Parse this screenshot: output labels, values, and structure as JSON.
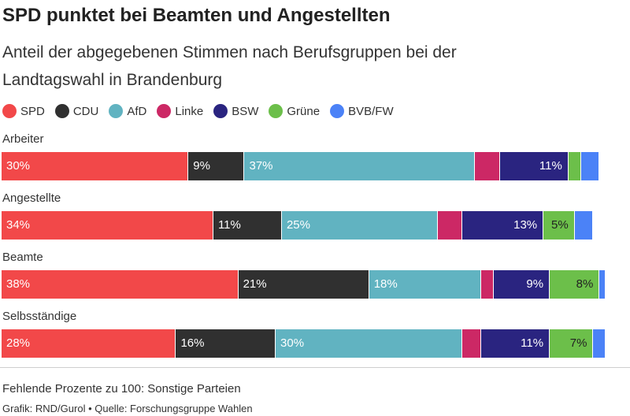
{
  "header": {
    "title": "SPD punktet bei Beamten und Angestellten",
    "subtitle": "Anteil der abgegebenen Stimmen nach Berufsgruppen bei der Landtagswahl in Brandenburg"
  },
  "colors": {
    "SPD": "#f24849",
    "CDU": "#303030",
    "AfD": "#61b3c1",
    "Linke": "#cc2865",
    "BSW": "#2a2480",
    "Grüne": "#6cbf4a",
    "BVB/FW": "#4b82f7"
  },
  "chart_data": {
    "type": "bar",
    "orientation": "horizontal",
    "stacked": true,
    "xlim": [
      0,
      100
    ],
    "legend_position": "top-left",
    "series_names": [
      "SPD",
      "CDU",
      "AfD",
      "Linke",
      "BSW",
      "Grüne",
      "BVB/FW"
    ],
    "categories": [
      "Arbeiter",
      "Angestellte",
      "Beamte",
      "Selbsständige"
    ],
    "series": [
      {
        "name": "SPD",
        "values": [
          30,
          34,
          38,
          28
        ],
        "labels": [
          "30%",
          "34%",
          "38%",
          "28%"
        ]
      },
      {
        "name": "CDU",
        "values": [
          9,
          11,
          21,
          16
        ],
        "labels": [
          "9%",
          "11%",
          "21%",
          "16%"
        ]
      },
      {
        "name": "AfD",
        "values": [
          37,
          25,
          18,
          30
        ],
        "labels": [
          "37%",
          "25%",
          "18%",
          "30%"
        ]
      },
      {
        "name": "Linke",
        "values": [
          4,
          4,
          2,
          3
        ],
        "labels": [
          "",
          "",
          "",
          ""
        ]
      },
      {
        "name": "BSW",
        "values": [
          11,
          13,
          9,
          11
        ],
        "labels": [
          "11%",
          "13%",
          "9%",
          "11%"
        ]
      },
      {
        "name": "Grüne",
        "values": [
          2,
          5,
          8,
          7
        ],
        "labels": [
          "",
          "5%",
          "8%",
          "7%"
        ]
      },
      {
        "name": "BVB/FW",
        "values": [
          3,
          3,
          1,
          2
        ],
        "labels": [
          "",
          "",
          "",
          ""
        ]
      }
    ]
  },
  "footer": {
    "note": "Fehlende Prozente zu 100: Sonstige Parteien",
    "source": "Grafik: RND/Gurol • Quelle: Forschungsgruppe Wahlen"
  }
}
